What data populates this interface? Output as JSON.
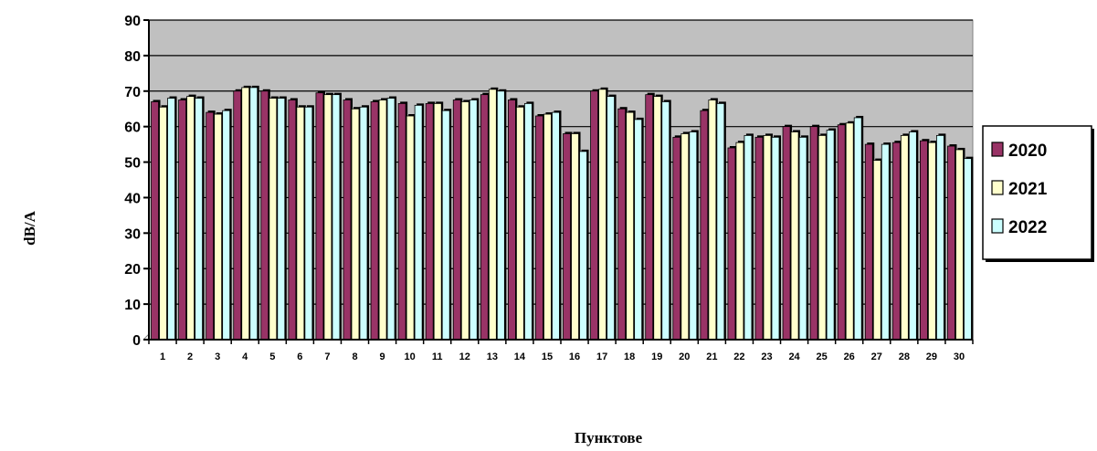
{
  "chart_data": {
    "type": "bar",
    "xlabel": "Пунктове",
    "ylabel": "dB/A",
    "ylim": [
      0,
      90
    ],
    "yticks": [
      0,
      10,
      20,
      30,
      40,
      50,
      60,
      70,
      80,
      90
    ],
    "grid": true,
    "legend_position": "right",
    "categories": [
      "1",
      "2",
      "3",
      "4",
      "5",
      "6",
      "7",
      "8",
      "9",
      "10",
      "11",
      "12",
      "13",
      "14",
      "15",
      "16",
      "17",
      "18",
      "19",
      "20",
      "21",
      "22",
      "23",
      "24",
      "25",
      "26",
      "27",
      "28",
      "29",
      "30"
    ],
    "series": [
      {
        "name": "2020",
        "color": "#993366",
        "values": [
          67,
          67.5,
          64,
          70,
          70,
          67.5,
          69.5,
          67.5,
          67,
          66.5,
          66.5,
          67.5,
          69,
          67.5,
          63,
          58,
          70,
          65,
          69,
          57,
          64.5,
          54,
          57,
          60,
          60,
          60.5,
          55,
          55.5,
          56,
          54.5
        ]
      },
      {
        "name": "2021",
        "color": "#ffffcc",
        "values": [
          65.5,
          68.5,
          63.5,
          71,
          68,
          65.5,
          69,
          65,
          67.5,
          63,
          66.5,
          67,
          70.5,
          65.5,
          63.5,
          58,
          70.5,
          64,
          68.5,
          58,
          67.5,
          55.5,
          57.5,
          58.5,
          57.5,
          61,
          50.5,
          57.5,
          55.5,
          53.5
        ]
      },
      {
        "name": "2022",
        "color": "#ccffff",
        "values": [
          68,
          68,
          64.5,
          71,
          68,
          65.5,
          69,
          65.5,
          68,
          66,
          64.5,
          67.5,
          70,
          66.5,
          64,
          53,
          68.5,
          62,
          67,
          58.5,
          66.5,
          57.5,
          57,
          57,
          59,
          62.5,
          55,
          58.5,
          57.5,
          51
        ]
      }
    ]
  }
}
